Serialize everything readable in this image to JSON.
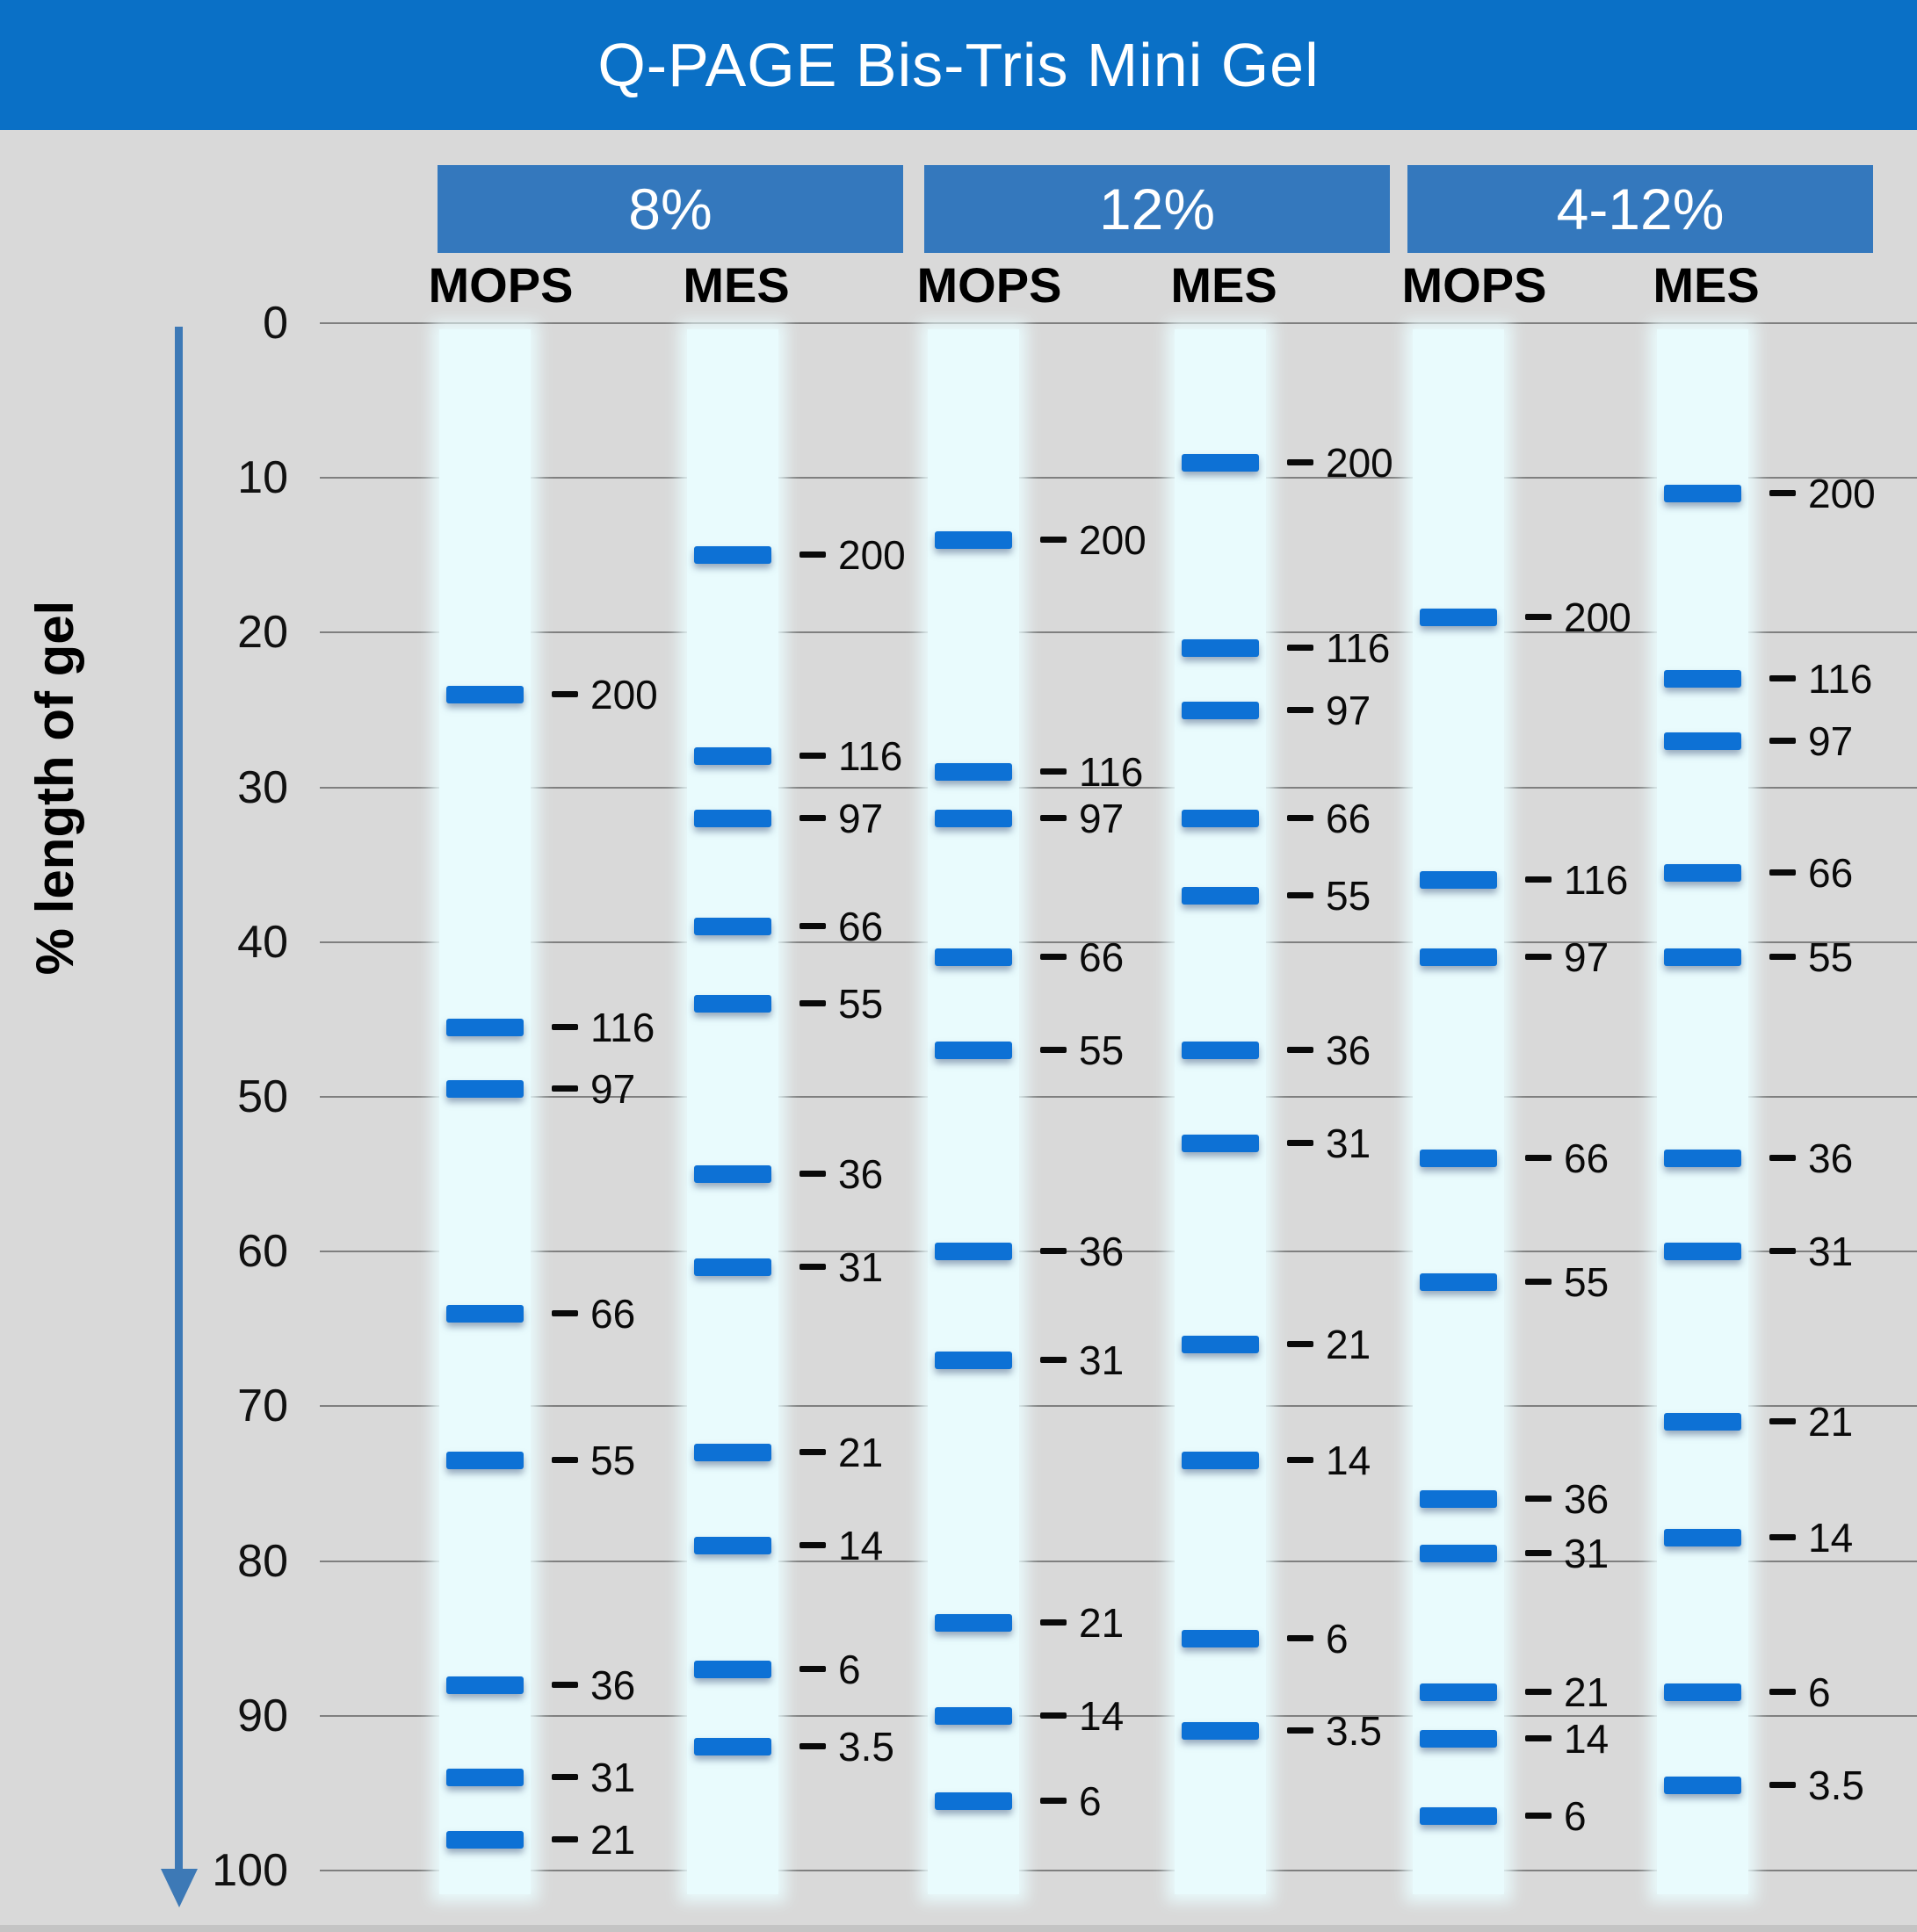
{
  "title": "Q-PAGE Bis-Tris Mini Gel",
  "colors": {
    "title_bar_bg": "#0a70c6",
    "group_header_bg": "#3478bd",
    "band_blue": "#0d71d5",
    "lane_bg": "#e9fbfd",
    "page_bg": "#d9d9d9",
    "gridline_gray": "#7f7f7f",
    "arrow_blue": "#3d79b6"
  },
  "chart_data": {
    "type": "scatter",
    "title": "Q-PAGE Bis-Tris Mini Gel",
    "ylabel": "% length of gel",
    "y_axis": {
      "min": 0,
      "max": 100,
      "tick_step": 10,
      "direction": "down",
      "ticks": [
        0,
        10,
        20,
        30,
        40,
        50,
        60,
        70,
        80,
        90,
        100
      ],
      "grid": true
    },
    "value_meaning": "band position as % of gel length; band label = protein size (kDa)",
    "groups": [
      {
        "label": "8%",
        "lanes": [
          {
            "buffer": "MOPS",
            "bands": [
              {
                "mw": "200",
                "pos": 24
              },
              {
                "mw": "116",
                "pos": 45.5
              },
              {
                "mw": "97",
                "pos": 49.5
              },
              {
                "mw": "66",
                "pos": 64
              },
              {
                "mw": "55",
                "pos": 73.5
              },
              {
                "mw": "36",
                "pos": 88
              },
              {
                "mw": "31",
                "pos": 94
              },
              {
                "mw": "21",
                "pos": 98
              }
            ]
          },
          {
            "buffer": "MES",
            "bands": [
              {
                "mw": "200",
                "pos": 15
              },
              {
                "mw": "116",
                "pos": 28
              },
              {
                "mw": "97",
                "pos": 32
              },
              {
                "mw": "66",
                "pos": 39
              },
              {
                "mw": "55",
                "pos": 44
              },
              {
                "mw": "36",
                "pos": 55
              },
              {
                "mw": "31",
                "pos": 61
              },
              {
                "mw": "21",
                "pos": 73
              },
              {
                "mw": "14",
                "pos": 79
              },
              {
                "mw": "6",
                "pos": 87
              },
              {
                "mw": "3.5",
                "pos": 92
              }
            ]
          }
        ]
      },
      {
        "label": "12%",
        "lanes": [
          {
            "buffer": "MOPS",
            "bands": [
              {
                "mw": "200",
                "pos": 14
              },
              {
                "mw": "116",
                "pos": 29
              },
              {
                "mw": "97",
                "pos": 32
              },
              {
                "mw": "66",
                "pos": 41
              },
              {
                "mw": "55",
                "pos": 47
              },
              {
                "mw": "36",
                "pos": 60
              },
              {
                "mw": "31",
                "pos": 67
              },
              {
                "mw": "21",
                "pos": 84
              },
              {
                "mw": "14",
                "pos": 90
              },
              {
                "mw": "6",
                "pos": 95.5
              }
            ]
          },
          {
            "buffer": "MES",
            "bands": [
              {
                "mw": "200",
                "pos": 9
              },
              {
                "mw": "116",
                "pos": 21
              },
              {
                "mw": "97",
                "pos": 25
              },
              {
                "mw": "66",
                "pos": 32
              },
              {
                "mw": "55",
                "pos": 37
              },
              {
                "mw": "36",
                "pos": 47
              },
              {
                "mw": "31",
                "pos": 53
              },
              {
                "mw": "21",
                "pos": 66
              },
              {
                "mw": "14",
                "pos": 73.5
              },
              {
                "mw": "6",
                "pos": 85
              },
              {
                "mw": "3.5",
                "pos": 91
              }
            ]
          }
        ]
      },
      {
        "label": "4-12%",
        "lanes": [
          {
            "buffer": "MOPS",
            "bands": [
              {
                "mw": "200",
                "pos": 19
              },
              {
                "mw": "116",
                "pos": 36
              },
              {
                "mw": "97",
                "pos": 41
              },
              {
                "mw": "66",
                "pos": 54
              },
              {
                "mw": "55",
                "pos": 62
              },
              {
                "mw": "36",
                "pos": 76
              },
              {
                "mw": "31",
                "pos": 79.5
              },
              {
                "mw": "21",
                "pos": 88.5
              },
              {
                "mw": "14",
                "pos": 91.5
              },
              {
                "mw": "6",
                "pos": 96.5
              }
            ]
          },
          {
            "buffer": "MES",
            "bands": [
              {
                "mw": "200",
                "pos": 11
              },
              {
                "mw": "116",
                "pos": 23
              },
              {
                "mw": "97",
                "pos": 27
              },
              {
                "mw": "66",
                "pos": 35.5
              },
              {
                "mw": "55",
                "pos": 41
              },
              {
                "mw": "36",
                "pos": 54
              },
              {
                "mw": "31",
                "pos": 60
              },
              {
                "mw": "21",
                "pos": 71
              },
              {
                "mw": "14",
                "pos": 78.5
              },
              {
                "mw": "6",
                "pos": 88.5
              },
              {
                "mw": "3.5",
                "pos": 94.5
              }
            ]
          }
        ]
      }
    ]
  }
}
